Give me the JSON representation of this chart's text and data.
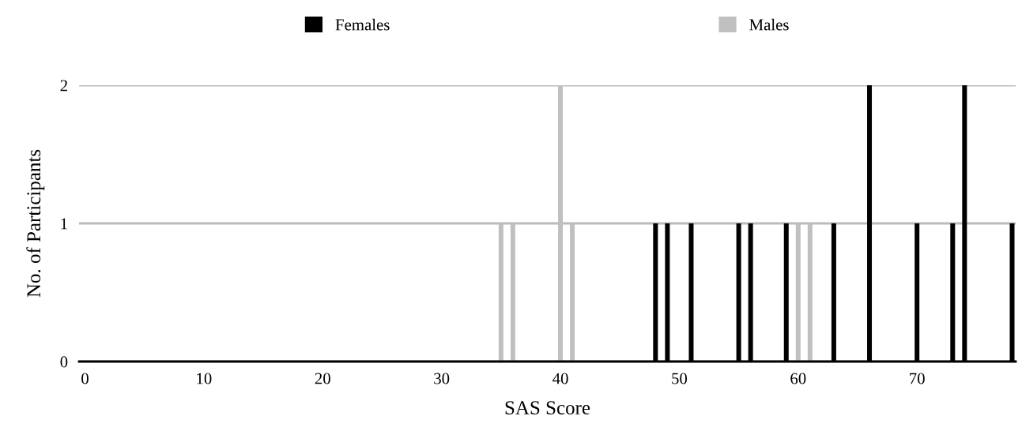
{
  "chart_data": {
    "type": "bar",
    "xlabel": "SAS Score",
    "ylabel": "No. of Participants",
    "series": [
      {
        "name": "Females",
        "color": "#000000",
        "x": [
          48,
          49,
          51,
          55,
          56,
          59,
          63,
          66,
          70,
          73,
          74,
          78
        ],
        "values": [
          1,
          1,
          1,
          1,
          1,
          1,
          1,
          2,
          1,
          1,
          2,
          1
        ]
      },
      {
        "name": "Males",
        "color": "#c0c0c0",
        "x": [
          35,
          36,
          40,
          41,
          60,
          61
        ],
        "values": [
          1,
          1,
          2,
          1,
          1,
          1
        ]
      }
    ],
    "xlim": [
      -0.5,
      78.3
    ],
    "xticks": [
      0,
      10,
      20,
      30,
      40,
      50,
      60,
      70
    ],
    "ylim": [
      0,
      2
    ],
    "yticks": [
      0,
      1,
      2
    ],
    "grid": "y",
    "legend": "top"
  }
}
